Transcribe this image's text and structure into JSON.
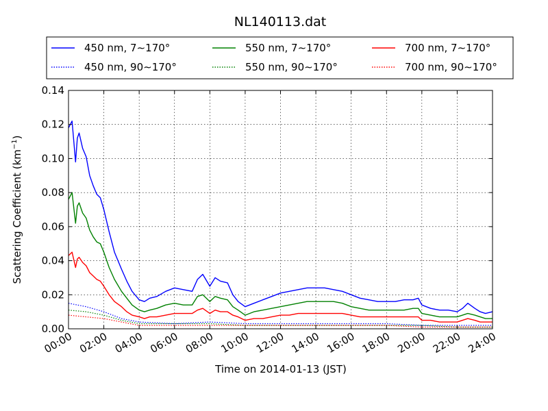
{
  "chart_data": {
    "type": "line",
    "title": "NL140113.dat",
    "xlabel": "Time on 2014-01-13 (JST)",
    "ylabel": "Scattering Coefficient (km",
    "ylabel_sup": "−1",
    "ylabel_end": ")",
    "ylim": [
      0,
      0.14
    ],
    "xlim": [
      0,
      24
    ],
    "grid": true,
    "legend_position": "top",
    "yticks": [
      {
        "value": 0.0,
        "label": "0.00"
      },
      {
        "value": 0.02,
        "label": "0.02"
      },
      {
        "value": 0.04,
        "label": "0.04"
      },
      {
        "value": 0.06,
        "label": "0.06"
      },
      {
        "value": 0.08,
        "label": "0.08"
      },
      {
        "value": 0.1,
        "label": "0.10"
      },
      {
        "value": 0.12,
        "label": "0.12"
      },
      {
        "value": 0.14,
        "label": "0.14"
      }
    ],
    "xticks": [
      {
        "value": 0,
        "label": "00:00"
      },
      {
        "value": 2,
        "label": "02:00"
      },
      {
        "value": 4,
        "label": "04:00"
      },
      {
        "value": 6,
        "label": "06:00"
      },
      {
        "value": 8,
        "label": "08:00"
      },
      {
        "value": 10,
        "label": "10:00"
      },
      {
        "value": 12,
        "label": "12:00"
      },
      {
        "value": 14,
        "label": "14:00"
      },
      {
        "value": 16,
        "label": "16:00"
      },
      {
        "value": 18,
        "label": "18:00"
      },
      {
        "value": 20,
        "label": "20:00"
      },
      {
        "value": 22,
        "label": "22:00"
      },
      {
        "value": 24,
        "label": "24:00"
      }
    ],
    "series": [
      {
        "name": "450 nm, 7∼170°",
        "color": "#0000ff",
        "style": "solid",
        "x": [
          0,
          0.2,
          0.4,
          0.5,
          0.6,
          0.8,
          1,
          1.2,
          1.4,
          1.6,
          1.8,
          2,
          2.3,
          2.6,
          3,
          3.3,
          3.6,
          4,
          4.3,
          4.6,
          5,
          5.5,
          6,
          6.5,
          7,
          7.3,
          7.6,
          8,
          8.3,
          8.6,
          9,
          9.3,
          9.6,
          10,
          10.5,
          11,
          11.5,
          12,
          12.5,
          13,
          13.5,
          14,
          14.5,
          15,
          15.5,
          16,
          16.5,
          17,
          17.5,
          18,
          18.5,
          19,
          19.5,
          19.8,
          20,
          20.5,
          21,
          21.5,
          22,
          22.3,
          22.6,
          23,
          23.3,
          23.6,
          24
        ],
        "y": [
          0.118,
          0.122,
          0.098,
          0.112,
          0.115,
          0.106,
          0.101,
          0.09,
          0.084,
          0.079,
          0.077,
          0.07,
          0.057,
          0.045,
          0.035,
          0.028,
          0.022,
          0.017,
          0.016,
          0.018,
          0.019,
          0.022,
          0.024,
          0.023,
          0.022,
          0.029,
          0.032,
          0.025,
          0.03,
          0.028,
          0.027,
          0.02,
          0.016,
          0.013,
          0.015,
          0.017,
          0.019,
          0.021,
          0.022,
          0.023,
          0.024,
          0.024,
          0.024,
          0.023,
          0.022,
          0.02,
          0.018,
          0.017,
          0.016,
          0.016,
          0.016,
          0.017,
          0.017,
          0.018,
          0.014,
          0.012,
          0.011,
          0.011,
          0.01,
          0.012,
          0.015,
          0.012,
          0.01,
          0.009,
          0.01
        ]
      },
      {
        "name": "450 nm, 90∼170°",
        "color": "#0000ff",
        "style": "dotted",
        "x": [
          0,
          1,
          2,
          3,
          4,
          6,
          8,
          10,
          12,
          14,
          16,
          18,
          20,
          22,
          24
        ],
        "y": [
          0.015,
          0.013,
          0.01,
          0.006,
          0.004,
          0.003,
          0.004,
          0.003,
          0.003,
          0.003,
          0.003,
          0.003,
          0.002,
          0.002,
          0.002
        ]
      },
      {
        "name": "550 nm, 7∼170°",
        "color": "#008000",
        "style": "solid",
        "x": [
          0,
          0.2,
          0.4,
          0.5,
          0.6,
          0.8,
          1,
          1.2,
          1.4,
          1.6,
          1.8,
          2,
          2.3,
          2.6,
          3,
          3.3,
          3.6,
          4,
          4.3,
          4.6,
          5,
          5.5,
          6,
          6.5,
          7,
          7.3,
          7.6,
          8,
          8.3,
          8.6,
          9,
          9.3,
          9.6,
          10,
          10.5,
          11,
          11.5,
          12,
          12.5,
          13,
          13.5,
          14,
          14.5,
          15,
          15.5,
          16,
          16.5,
          17,
          17.5,
          18,
          18.5,
          19,
          19.5,
          19.8,
          20,
          20.5,
          21,
          21.5,
          22,
          22.3,
          22.6,
          23,
          23.3,
          23.6,
          24
        ],
        "y": [
          0.076,
          0.08,
          0.062,
          0.072,
          0.074,
          0.068,
          0.065,
          0.058,
          0.054,
          0.051,
          0.05,
          0.045,
          0.036,
          0.029,
          0.022,
          0.018,
          0.014,
          0.011,
          0.01,
          0.011,
          0.012,
          0.014,
          0.015,
          0.014,
          0.014,
          0.019,
          0.02,
          0.016,
          0.019,
          0.018,
          0.017,
          0.013,
          0.011,
          0.008,
          0.01,
          0.011,
          0.012,
          0.013,
          0.014,
          0.015,
          0.016,
          0.016,
          0.016,
          0.016,
          0.015,
          0.013,
          0.012,
          0.011,
          0.011,
          0.011,
          0.011,
          0.011,
          0.012,
          0.012,
          0.009,
          0.008,
          0.007,
          0.007,
          0.007,
          0.008,
          0.009,
          0.008,
          0.007,
          0.006,
          0.006
        ]
      },
      {
        "name": "550 nm, 90∼170°",
        "color": "#008000",
        "style": "dotted",
        "x": [
          0,
          1,
          2,
          3,
          4,
          6,
          8,
          10,
          12,
          14,
          16,
          18,
          20,
          22,
          24
        ],
        "y": [
          0.011,
          0.01,
          0.008,
          0.005,
          0.003,
          0.003,
          0.003,
          0.002,
          0.002,
          0.002,
          0.002,
          0.002,
          0.002,
          0.001,
          0.001
        ]
      },
      {
        "name": "700 nm, 7∼170°",
        "color": "#ff0000",
        "style": "solid",
        "x": [
          0,
          0.2,
          0.4,
          0.5,
          0.6,
          0.8,
          1,
          1.2,
          1.4,
          1.6,
          1.8,
          2,
          2.3,
          2.6,
          3,
          3.3,
          3.6,
          4,
          4.3,
          4.6,
          5,
          5.5,
          6,
          6.5,
          7,
          7.3,
          7.6,
          8,
          8.3,
          8.6,
          9,
          9.3,
          9.6,
          10,
          10.5,
          11,
          11.5,
          12,
          12.5,
          13,
          13.5,
          14,
          14.5,
          15,
          15.5,
          16,
          16.5,
          17,
          17.5,
          18,
          18.5,
          19,
          19.5,
          19.8,
          20,
          20.5,
          21,
          21.5,
          22,
          22.3,
          22.6,
          23,
          23.3,
          23.6,
          24
        ],
        "y": [
          0.043,
          0.045,
          0.036,
          0.041,
          0.042,
          0.039,
          0.037,
          0.033,
          0.031,
          0.029,
          0.028,
          0.025,
          0.02,
          0.016,
          0.013,
          0.01,
          0.008,
          0.007,
          0.006,
          0.007,
          0.007,
          0.008,
          0.009,
          0.009,
          0.009,
          0.011,
          0.012,
          0.009,
          0.011,
          0.01,
          0.01,
          0.008,
          0.007,
          0.005,
          0.006,
          0.006,
          0.007,
          0.008,
          0.008,
          0.009,
          0.009,
          0.009,
          0.009,
          0.009,
          0.009,
          0.008,
          0.007,
          0.007,
          0.007,
          0.007,
          0.007,
          0.007,
          0.007,
          0.007,
          0.005,
          0.005,
          0.004,
          0.004,
          0.004,
          0.005,
          0.006,
          0.005,
          0.004,
          0.004,
          0.004
        ]
      },
      {
        "name": "700 nm, 90∼170°",
        "color": "#ff0000",
        "style": "dotted",
        "x": [
          0,
          1,
          2,
          3,
          4,
          6,
          8,
          10,
          12,
          14,
          16,
          18,
          20,
          22,
          24
        ],
        "y": [
          0.008,
          0.007,
          0.006,
          0.004,
          0.002,
          0.002,
          0.002,
          0.002,
          0.002,
          0.002,
          0.002,
          0.002,
          0.001,
          0.001,
          0.001
        ]
      }
    ]
  }
}
